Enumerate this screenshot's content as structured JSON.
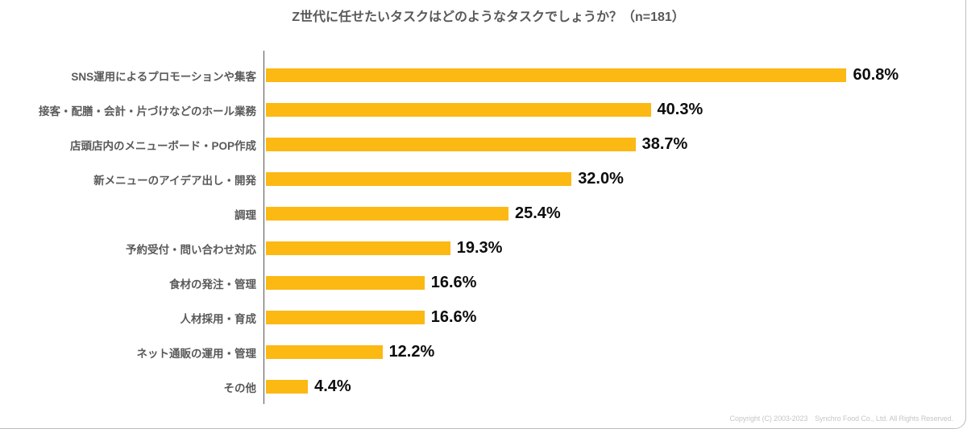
{
  "title": "Z世代に任せたいタスクはどのようなタスクでしょうか？（n=181）",
  "chart_data": {
    "type": "bar",
    "orientation": "horizontal",
    "title": "Z世代に任せたいタスクはどのようなタスクでしょうか？（n=181）",
    "categories": [
      "SNS運用によるプロモーションや集客",
      "接客・配膳・会計・片づけなどのホール業務",
      "店頭店内のメニューボード・POP作成",
      "新メニューのアイデア出し・開発",
      "調理",
      "予約受付・問い合わせ対応",
      "食材の発注・管理",
      "人材採用・育成",
      "ネット通販の運用・管理",
      "その他"
    ],
    "values": [
      60.8,
      40.3,
      38.7,
      32.0,
      25.4,
      19.3,
      16.6,
      16.6,
      12.2,
      4.4
    ],
    "value_suffix": "%",
    "xlabel": "",
    "ylabel": "",
    "xlim": [
      0,
      73
    ],
    "grid": false,
    "legend": false,
    "bar_color": "#FCB813",
    "category_label_color": "#595959",
    "value_label_color": "#0d0d0d"
  },
  "footer": {
    "copyright": "Copyright (C) 2003-2023　Synchro Food Co., Ltd. All Rights Reserved."
  }
}
